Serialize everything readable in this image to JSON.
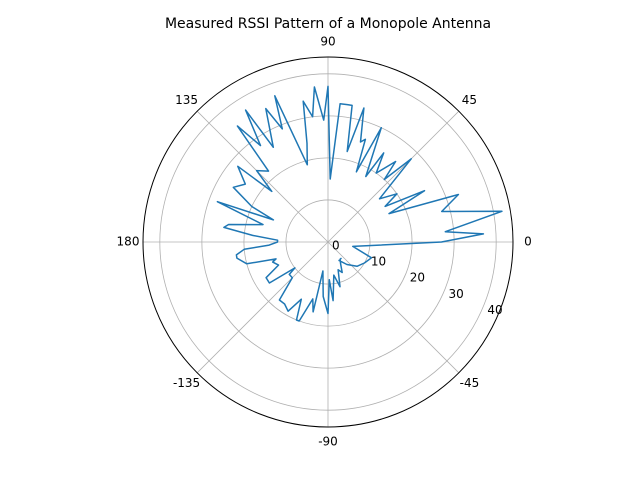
{
  "chart_data": {
    "type": "polar-line",
    "title": "Measured RSSI Pattern of a Monopole Antenna",
    "theta_unit": "degrees",
    "theta_ticks": [
      0,
      45,
      90,
      135,
      180,
      -135,
      -90,
      -45
    ],
    "r_ticks": [
      0,
      10,
      20,
      30,
      40
    ],
    "r_max": 44,
    "grid": true,
    "colors": {
      "line": "#1f77b4",
      "grid": "#b0b0b0",
      "frame": "#000000"
    },
    "series": [
      {
        "theta": [
          -60,
          -50,
          -40,
          -30,
          -20,
          -10,
          0,
          3,
          5,
          10,
          12,
          15,
          20,
          25,
          28,
          32,
          35,
          40,
          45,
          48,
          50,
          55,
          58,
          60,
          65,
          68,
          70,
          72,
          75,
          78,
          80,
          82,
          85,
          88,
          90,
          92,
          95,
          97,
          100,
          102,
          105,
          110,
          112,
          115,
          120,
          122,
          125,
          128,
          130,
          135,
          138,
          140,
          145,
          150,
          155,
          158,
          160,
          165,
          170,
          172,
          175,
          178,
          180,
          183,
          185,
          188,
          190,
          195,
          198,
          200,
          205,
          210,
          215,
          218,
          220,
          225,
          230,
          235,
          240,
          245,
          248,
          250,
          255,
          258,
          260,
          265,
          270,
          272,
          275,
          280,
          285,
          290,
          295,
          300,
          305,
          310
        ],
        "r": [
          5,
          7,
          9,
          10,
          11,
          6,
          27,
          37,
          28,
          42,
          35,
          28,
          33,
          16,
          26,
          16,
          20,
          16,
          28,
          20,
          25,
          20,
          25,
          18,
          30,
          18,
          26,
          25,
          33,
          22,
          33,
          33,
          33,
          15,
          37,
          29,
          37,
          30,
          34,
          24,
          19,
          37,
          29,
          35,
          26,
          37,
          28,
          35,
          22,
          24,
          18,
          28,
          24,
          26,
          20,
          14,
          28,
          16,
          24,
          25,
          18,
          12,
          12,
          14,
          20,
          22,
          22,
          20,
          13,
          14,
          13,
          17,
          17,
          10,
          12,
          12,
          18,
          18,
          19,
          15,
          20,
          20,
          14,
          17,
          7,
          13,
          17,
          9,
          14,
          8,
          11,
          7,
          8,
          6,
          5,
          5
        ]
      }
    ]
  }
}
